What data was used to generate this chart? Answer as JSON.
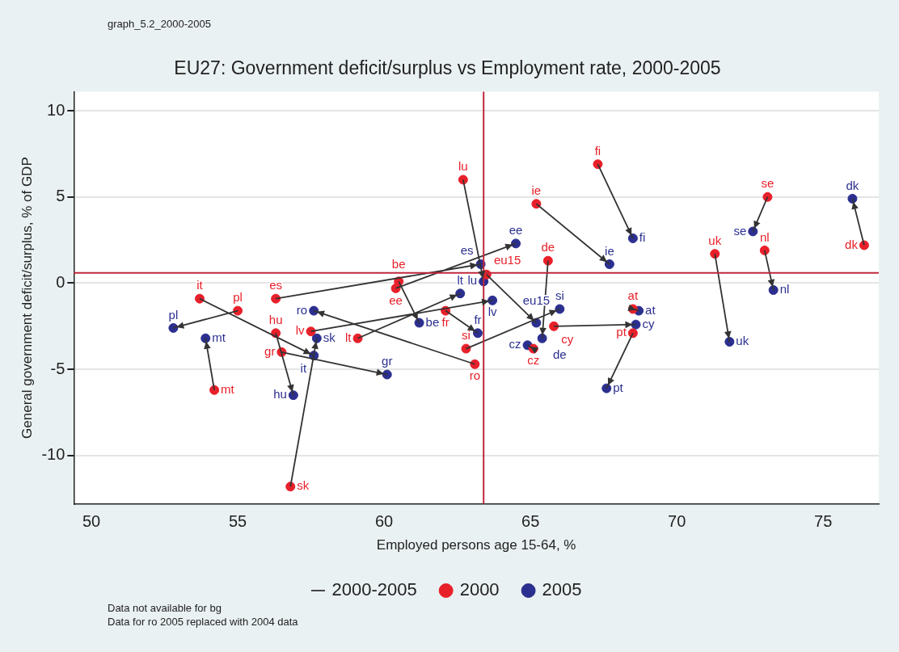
{
  "chart_data": {
    "type": "scatter",
    "title": "EU27: Government deficit/surplus vs Employment rate, 2000-2005",
    "xlabel": "Employed persons age 15-64, %",
    "ylabel": "General government deficit/surplus, % of GDP",
    "xlim": [
      49.4,
      76.9
    ],
    "xticks": [
      50,
      55,
      60,
      65,
      70,
      75
    ],
    "ylim": [
      -12.8,
      11.1
    ],
    "yticks": [
      -10,
      -5,
      0,
      5,
      10
    ],
    "grid": "y",
    "legend": "bottom",
    "marker": "circle",
    "ref_lines": [
      {
        "axis": "x",
        "value": 63.4,
        "color": "#c0283c"
      },
      {
        "axis": "y",
        "value": 0.6,
        "color": "#c0283c"
      }
    ],
    "series": [
      {
        "name": "2000-2005",
        "type": "line",
        "marker": "none",
        "color": "#333333",
        "x": [
          53.7,
          57.6,
          null,
          55.0,
          52.8,
          null,
          56.3,
          63.3,
          null,
          56.3,
          56.9,
          null,
          57.5,
          63.7,
          null,
          56.5,
          60.1,
          null,
          54.2,
          53.9,
          null,
          56.8,
          57.7,
          null,
          59.1,
          62.6,
          null,
          60.5,
          61.2,
          null,
          60.4,
          64.5,
          null,
          62.7,
          63.4,
          null,
          62.1,
          63.2,
          null,
          62.8,
          66.0,
          null,
          63.1,
          57.6,
          null,
          63.5,
          65.2,
          null,
          65.2,
          67.7,
          null,
          65.6,
          65.4,
          null,
          65.1,
          64.9,
          null,
          65.8,
          68.6,
          null,
          67.3,
          68.5,
          null,
          68.5,
          68.7,
          null,
          68.5,
          67.6,
          null,
          71.3,
          71.8,
          null,
          73.1,
          72.6,
          null,
          73.0,
          73.3,
          null,
          76.4,
          76.0,
          null
        ],
        "values": [
          -0.9,
          -4.2,
          null,
          -1.6,
          -2.6,
          null,
          -0.9,
          1.1,
          null,
          -2.9,
          -6.5,
          null,
          -2.8,
          -1.0,
          null,
          -4.0,
          -5.3,
          null,
          -6.2,
          -3.2,
          null,
          -11.8,
          -3.2,
          null,
          -3.2,
          -0.6,
          null,
          0.1,
          -2.3,
          null,
          -0.3,
          2.3,
          null,
          6.0,
          0.1,
          null,
          -1.6,
          -2.9,
          null,
          -3.8,
          -1.5,
          null,
          -4.7,
          -1.6,
          null,
          0.5,
          -2.3,
          null,
          4.6,
          1.1,
          null,
          1.3,
          -3.2,
          null,
          -3.8,
          -3.6,
          null,
          -2.5,
          -2.4,
          null,
          6.9,
          2.6,
          null,
          -1.5,
          -1.6,
          null,
          -2.9,
          -6.1,
          null,
          1.7,
          -3.4,
          null,
          5.0,
          3.0,
          null,
          1.9,
          -0.4,
          null,
          2.2,
          4.9,
          null
        ]
      },
      {
        "name": "2000",
        "color": "#e8202a",
        "x": [
          53.7,
          55.0,
          56.3,
          56.3,
          57.5,
          56.5,
          54.2,
          56.8,
          59.1,
          60.5,
          60.4,
          62.7,
          62.1,
          62.8,
          63.1,
          63.5,
          65.2,
          65.6,
          65.1,
          65.8,
          67.3,
          68.5,
          68.5,
          71.3,
          73.1,
          73.0,
          76.4
        ],
        "values": [
          -0.9,
          -1.6,
          -0.9,
          -2.9,
          -2.8,
          -4.0,
          -6.2,
          -11.8,
          -3.2,
          0.1,
          -0.3,
          6.0,
          -1.6,
          -3.8,
          -4.7,
          0.5,
          4.6,
          1.3,
          -3.8,
          -2.5,
          6.9,
          -1.5,
          -2.9,
          1.7,
          5.0,
          1.9,
          2.2
        ],
        "value_labels": [
          "it",
          "pl",
          "es",
          "hu",
          "lv",
          "gr",
          "mt",
          "sk",
          "lt",
          "be",
          "ee",
          "lu",
          "fr",
          "si",
          "ro",
          "eu15",
          "ie",
          "de",
          "cz",
          "cy",
          "fi",
          "at",
          "pt",
          "uk",
          "se",
          "nl",
          "dk"
        ]
      },
      {
        "name": "2005",
        "color": "#2b2f8f",
        "x": [
          57.6,
          52.8,
          63.3,
          56.9,
          63.7,
          60.1,
          53.9,
          57.7,
          62.6,
          61.2,
          64.5,
          63.4,
          63.2,
          66.0,
          57.6,
          65.2,
          67.7,
          65.4,
          64.9,
          68.6,
          68.5,
          68.7,
          67.6,
          71.8,
          72.6,
          73.3,
          76.0
        ],
        "values": [
          -4.2,
          -2.6,
          1.1,
          -6.5,
          -1.0,
          -5.3,
          -3.2,
          -3.2,
          -0.6,
          -2.3,
          2.3,
          0.1,
          -2.9,
          -1.5,
          -1.6,
          -2.3,
          1.1,
          -3.2,
          -3.6,
          -2.4,
          2.6,
          -1.6,
          -6.1,
          -3.4,
          3.0,
          -0.4,
          4.9
        ],
        "value_labels": [
          "it",
          "pl",
          "es",
          "hu",
          "lv",
          "gr",
          "mt",
          "sk",
          "lt",
          "be",
          "ee",
          "lu",
          "fr",
          "si",
          "ro",
          "eu15",
          "ie",
          "de",
          "cz",
          "cy",
          "fi",
          "at",
          "pt",
          "uk",
          "se",
          "nl",
          "dk"
        ]
      }
    ],
    "annotations": [
      "graph_5.2_2000-2005",
      "Data not available for bg",
      "Data for ro 2005 replaced with 2004 data"
    ]
  }
}
